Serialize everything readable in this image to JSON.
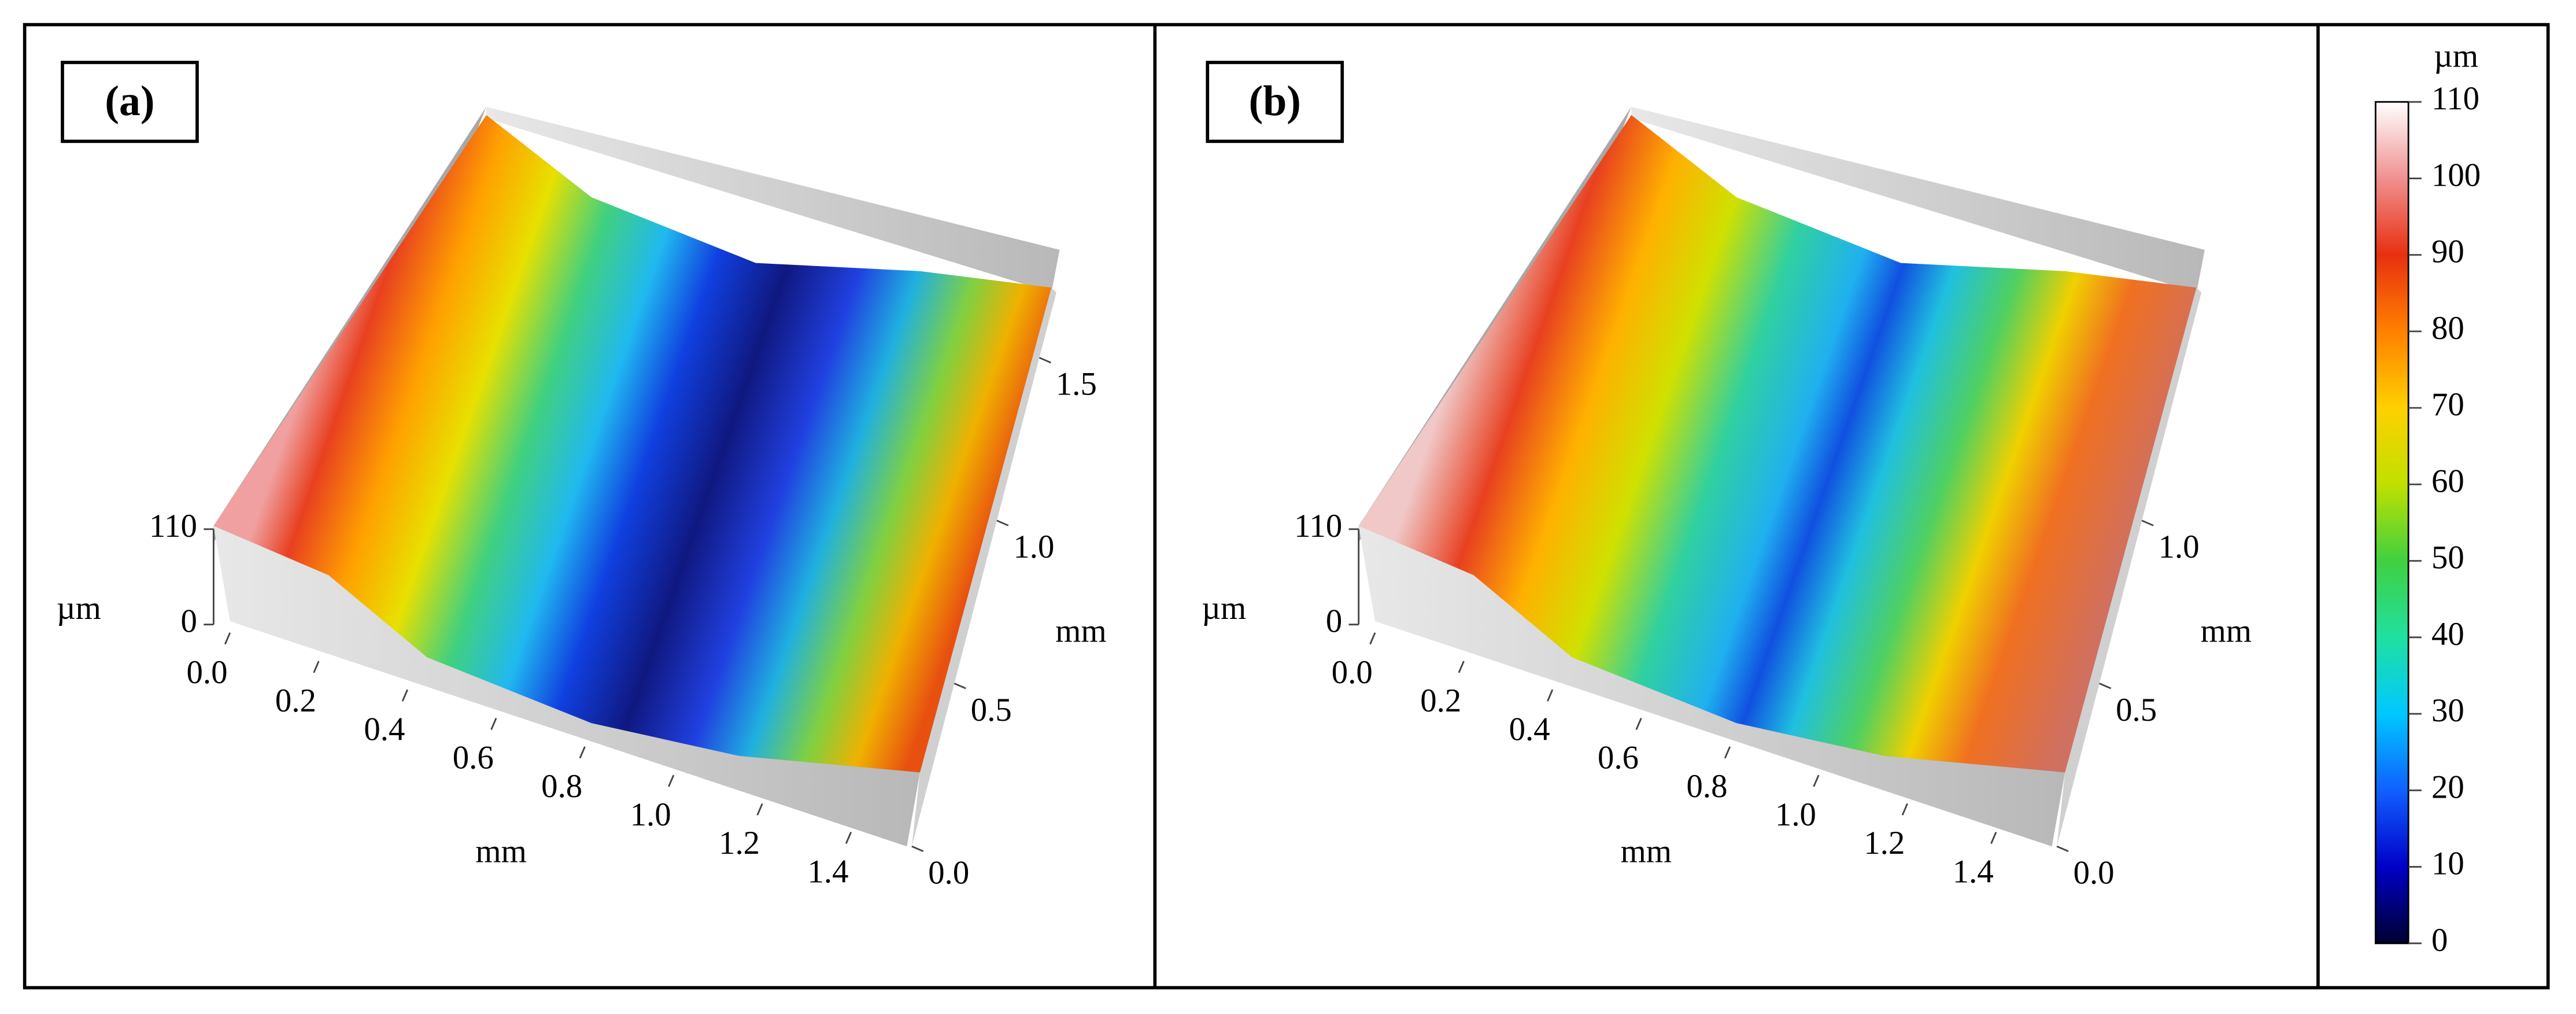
{
  "chart_data": [
    {
      "type": "surface",
      "label": "(a)",
      "x_label": "mm",
      "y_label": "mm",
      "z_label": "µm",
      "xlim": [
        0,
        1.5
      ],
      "xticks": [
        {
          "value": 0,
          "label": "0.0"
        },
        0.2,
        0.4,
        0.6,
        0.8,
        {
          "value": 1,
          "label": "1.0"
        },
        1.2,
        1.4
      ],
      "ylim": [
        0,
        1.7
      ],
      "yticks": [
        {
          "value": 0,
          "label": "0.0"
        },
        0.5,
        {
          "value": 1,
          "label": "1.0"
        },
        1.5
      ],
      "zlim": [
        0,
        110
      ],
      "zticks": [
        0,
        110
      ]
    },
    {
      "type": "surface",
      "label": "(b)",
      "x_label": "mm",
      "y_label": "mm",
      "z_label": "µm",
      "xlim": [
        0,
        1.5
      ],
      "xticks": [
        {
          "value": 0,
          "label": "0.0"
        },
        0.2,
        0.4,
        0.6,
        0.8,
        {
          "value": 1,
          "label": "1.0"
        },
        1.2,
        1.4
      ],
      "ylim": [
        0,
        1.7
      ],
      "yticks": [
        {
          "value": 0,
          "label": "0.0"
        },
        0.5,
        {
          "value": 1,
          "label": "1.0"
        }
      ],
      "zlim": [
        0,
        110
      ],
      "zticks": [
        0,
        110
      ]
    }
  ],
  "colorbar": {
    "label": "µm",
    "lim": [
      0,
      110
    ],
    "ticks": [
      0,
      10,
      20,
      30,
      40,
      50,
      60,
      70,
      80,
      90,
      100,
      110
    ],
    "colormap": [
      "#000030",
      "#0000c8",
      "#1060ff",
      "#00c8ff",
      "#20e0a0",
      "#40d040",
      "#c0e000",
      "#ffd000",
      "#ff8000",
      "#e83010",
      "#f09090",
      "#ffffff"
    ]
  }
}
